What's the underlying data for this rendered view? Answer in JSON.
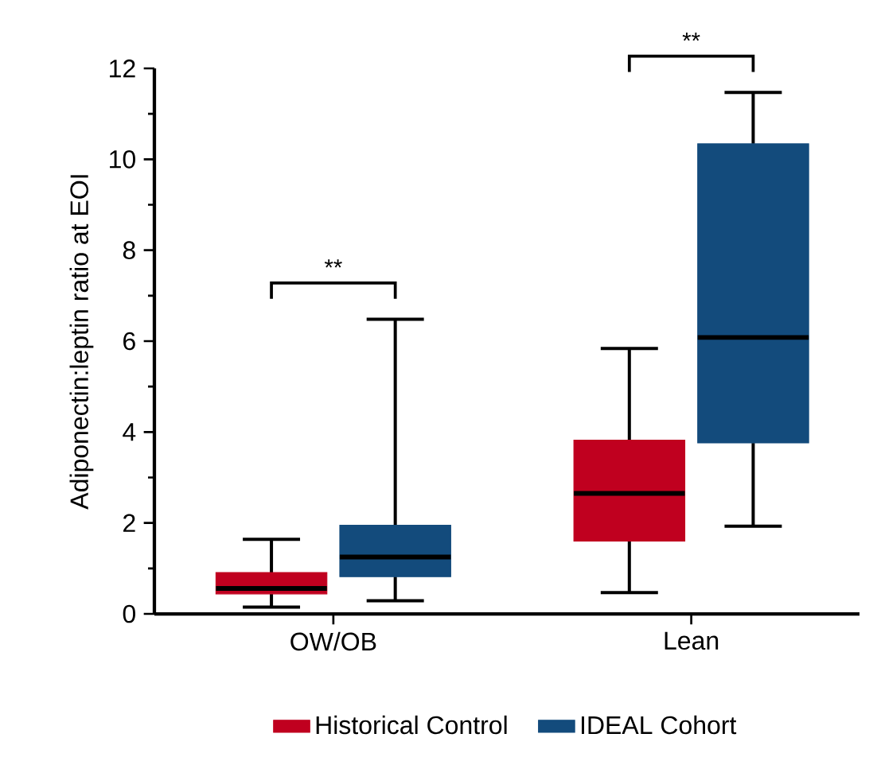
{
  "chart_data": {
    "type": "box",
    "ylabel": "Adiponectin:leptin ratio at EOI",
    "categories": [
      "OW/OB",
      "Lean"
    ],
    "series": [
      {
        "name": "Historical Control",
        "color": "#c0001f",
        "boxes": [
          {
            "low": 0.15,
            "q1": 0.44,
            "median": 0.56,
            "q3": 0.91,
            "high": 1.64
          },
          {
            "low": 0.47,
            "q1": 1.6,
            "median": 2.65,
            "q3": 3.82,
            "high": 5.84
          }
        ]
      },
      {
        "name": "IDEAL Cohort",
        "color": "#134b7c",
        "boxes": [
          {
            "low": 0.29,
            "q1": 0.82,
            "median": 1.25,
            "q3": 1.95,
            "high": 6.48
          },
          {
            "low": 1.93,
            "q1": 3.76,
            "median": 6.08,
            "q3": 10.34,
            "high": 11.47
          }
        ]
      }
    ],
    "ylim": [
      0,
      12
    ],
    "yticks": [
      0,
      2,
      4,
      6,
      8,
      10,
      12
    ],
    "annotations": [
      "**",
      "**"
    ],
    "legend": "bottom"
  }
}
